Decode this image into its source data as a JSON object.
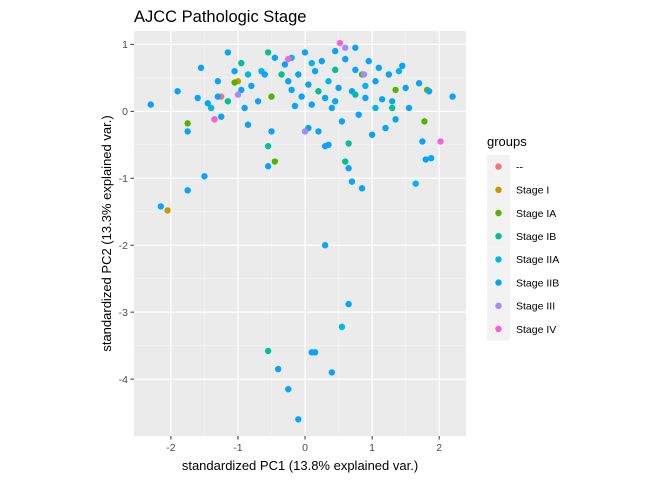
{
  "chart_data": {
    "type": "scatter",
    "title": "AJCC Pathologic Stage",
    "xlabel": "standardized PC1 (13.8% explained var.)",
    "ylabel": "standardized PC2 (13.3% explained var.)",
    "xlim": [
      -2.55,
      2.4
    ],
    "ylim": [
      -4.85,
      1.2
    ],
    "xticks": [
      -2,
      -1,
      0,
      1,
      2
    ],
    "xtick_labels": [
      "-2",
      "-1",
      "0",
      "1",
      "2"
    ],
    "yticks": [
      -4,
      -3,
      -2,
      -1,
      0,
      1
    ],
    "ytick_labels": [
      "-4",
      "-3",
      "-2",
      "-1",
      "0",
      "1"
    ],
    "grid": true,
    "legend_title": "groups",
    "legend_position": "right",
    "series": [
      {
        "name": "--",
        "color": "#F8766D",
        "points": [
          [
            -1.25,
            0.22
          ]
        ]
      },
      {
        "name": "Stage I",
        "color": "#C49A00",
        "points": [
          [
            -2.05,
            -1.48
          ],
          [
            -1.0,
            0.45
          ]
        ]
      },
      {
        "name": "Stage IA",
        "color": "#53B400",
        "points": [
          [
            -1.75,
            -0.18
          ],
          [
            -0.45,
            -0.75
          ],
          [
            -1.05,
            0.43
          ],
          [
            -0.5,
            0.22
          ],
          [
            0.85,
            0.55
          ],
          [
            1.35,
            0.32
          ],
          [
            1.78,
            -0.15
          ],
          [
            1.82,
            0.32
          ]
        ]
      },
      {
        "name": "Stage IB",
        "color": "#00C094",
        "points": [
          [
            -0.55,
            -3.58
          ],
          [
            -0.55,
            -0.52
          ],
          [
            0.6,
            -0.75
          ],
          [
            0.65,
            -0.48
          ],
          [
            -0.55,
            0.88
          ],
          [
            -0.35,
            0.55
          ],
          [
            -0.95,
            0.72
          ],
          [
            -1.15,
            0.15
          ],
          [
            0.45,
            0.62
          ],
          [
            0.75,
            0.25
          ],
          [
            1.3,
            0.05
          ],
          [
            0.2,
            0.3
          ]
        ]
      },
      {
        "name": "Stage IIA",
        "color": "#00B6EB",
        "points": [
          [
            0.55,
            -3.22
          ],
          [
            1.65,
            -1.08
          ],
          [
            -0.85,
            0.55
          ],
          [
            0.1,
            0.72
          ],
          [
            0.9,
            0.38
          ],
          [
            1.05,
            0.05
          ],
          [
            -0.2,
            0.8
          ],
          [
            0.35,
            0.45
          ],
          [
            -1.4,
            0.05
          ],
          [
            -0.65,
            0.6
          ],
          [
            1.4,
            0.6
          ]
        ]
      },
      {
        "name": "Stage IIB",
        "color": "#06A4FF",
        "points": [
          [
            -2.3,
            0.1
          ],
          [
            -2.15,
            -1.42
          ],
          [
            -1.75,
            -1.18
          ],
          [
            -1.75,
            -0.3
          ],
          [
            -1.5,
            -0.97
          ],
          [
            -1.9,
            0.3
          ],
          [
            -1.6,
            0.2
          ],
          [
            -1.45,
            0.12
          ],
          [
            -1.55,
            0.65
          ],
          [
            -1.35,
            -0.12
          ],
          [
            -1.3,
            0.45
          ],
          [
            -1.15,
            0.88
          ],
          [
            -1.05,
            0.6
          ],
          [
            -0.95,
            0.32
          ],
          [
            -0.9,
            0.05
          ],
          [
            -0.85,
            -0.2
          ],
          [
            -0.7,
            0.15
          ],
          [
            -0.6,
            0.55
          ],
          [
            -0.55,
            -0.82
          ],
          [
            -0.5,
            -0.3
          ],
          [
            -0.45,
            0.8
          ],
          [
            -0.4,
            -3.85
          ],
          [
            -0.3,
            0.7
          ],
          [
            -0.25,
            0.45
          ],
          [
            -0.2,
            0.32
          ],
          [
            -0.15,
            0.08
          ],
          [
            -0.1,
            0.55
          ],
          [
            -0.05,
            0.22
          ],
          [
            0.0,
            0.88
          ],
          [
            0.05,
            0.4
          ],
          [
            0.1,
            0.1
          ],
          [
            0.15,
            0.6
          ],
          [
            0.2,
            -0.3
          ],
          [
            0.25,
            0.75
          ],
          [
            0.3,
            0.2
          ],
          [
            0.35,
            -0.5
          ],
          [
            0.4,
            0.05
          ],
          [
            0.45,
            0.9
          ],
          [
            0.5,
            0.35
          ],
          [
            0.55,
            -0.15
          ],
          [
            0.6,
            0.78
          ],
          [
            0.65,
            -0.85
          ],
          [
            0.7,
            0.3
          ],
          [
            0.75,
            0.62
          ],
          [
            0.8,
            -0.05
          ],
          [
            0.85,
            -1.15
          ],
          [
            0.9,
            0.2
          ],
          [
            0.95,
            0.75
          ],
          [
            1.0,
            -0.35
          ],
          [
            1.05,
            0.45
          ],
          [
            1.1,
            0.65
          ],
          [
            1.15,
            0.18
          ],
          [
            1.2,
            -0.25
          ],
          [
            1.25,
            0.55
          ],
          [
            1.3,
            0.15
          ],
          [
            1.35,
            -0.12
          ],
          [
            1.45,
            0.68
          ],
          [
            1.55,
            0.05
          ],
          [
            1.7,
            0.42
          ],
          [
            1.75,
            -0.45
          ],
          [
            1.8,
            -0.72
          ],
          [
            1.85,
            0.3
          ],
          [
            1.88,
            -0.7
          ],
          [
            2.2,
            0.22
          ],
          [
            0.3,
            -2.0
          ],
          [
            0.1,
            -3.6
          ],
          [
            0.15,
            -3.6
          ],
          [
            0.4,
            -3.9
          ],
          [
            -0.1,
            -4.6
          ],
          [
            -0.25,
            -4.15
          ],
          [
            0.65,
            -2.88
          ],
          [
            0.7,
            -1.05
          ],
          [
            0.3,
            -0.52
          ],
          [
            0.05,
            -0.25
          ],
          [
            -0.8,
            0.38
          ],
          [
            -1.3,
            0.22
          ],
          [
            -1.25,
            -0.08
          ],
          [
            0.45,
            0.15
          ],
          [
            0.75,
            0.95
          ],
          [
            1.5,
            0.35
          ]
        ]
      },
      {
        "name": "Stage III",
        "color": "#A58AFF",
        "points": [
          [
            0.0,
            -0.3
          ],
          [
            -1.0,
            0.25
          ],
          [
            0.88,
            0.55
          ],
          [
            0.6,
            0.95
          ]
        ]
      },
      {
        "name": "Stage IV",
        "color": "#FB61D7",
        "points": [
          [
            0.52,
            1.02
          ],
          [
            -0.25,
            0.78
          ],
          [
            -1.35,
            -0.12
          ],
          [
            2.02,
            -0.45
          ]
        ]
      }
    ]
  }
}
